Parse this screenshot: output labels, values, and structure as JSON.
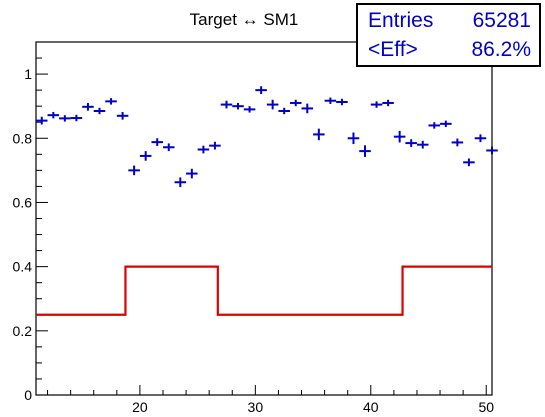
{
  "chart_data": {
    "type": "scatter",
    "title": "Target ↔ SM1",
    "xlabel": "",
    "ylabel": "",
    "xlim": [
      11,
      50.5
    ],
    "ylim": [
      0,
      1.1
    ],
    "x_ticks": [
      20,
      30,
      40,
      50
    ],
    "y_ticks": [
      0,
      0.2,
      0.4,
      0.6,
      0.8,
      1
    ],
    "grid": false,
    "series": [
      {
        "color": "#0000cc",
        "marker": "cross-with-error-bars",
        "points": [
          {
            "x": 11.5,
            "y": 0.855,
            "xerr": 0.5,
            "yerr": 0.012
          },
          {
            "x": 12.5,
            "y": 0.872,
            "xerr": 0.5,
            "yerr": 0.01
          },
          {
            "x": 13.5,
            "y": 0.862,
            "xerr": 0.5,
            "yerr": 0.01
          },
          {
            "x": 14.5,
            "y": 0.863,
            "xerr": 0.5,
            "yerr": 0.01
          },
          {
            "x": 15.5,
            "y": 0.898,
            "xerr": 0.5,
            "yerr": 0.012
          },
          {
            "x": 16.5,
            "y": 0.885,
            "xerr": 0.5,
            "yerr": 0.01
          },
          {
            "x": 17.5,
            "y": 0.915,
            "xerr": 0.5,
            "yerr": 0.01
          },
          {
            "x": 18.5,
            "y": 0.87,
            "xerr": 0.5,
            "yerr": 0.012
          },
          {
            "x": 19.5,
            "y": 0.7,
            "xerr": 0.5,
            "yerr": 0.015
          },
          {
            "x": 20.5,
            "y": 0.745,
            "xerr": 0.5,
            "yerr": 0.015
          },
          {
            "x": 21.5,
            "y": 0.788,
            "xerr": 0.5,
            "yerr": 0.012
          },
          {
            "x": 22.5,
            "y": 0.772,
            "xerr": 0.5,
            "yerr": 0.012
          },
          {
            "x": 23.5,
            "y": 0.663,
            "xerr": 0.5,
            "yerr": 0.015
          },
          {
            "x": 24.5,
            "y": 0.69,
            "xerr": 0.5,
            "yerr": 0.015
          },
          {
            "x": 25.5,
            "y": 0.765,
            "xerr": 0.5,
            "yerr": 0.012
          },
          {
            "x": 26.5,
            "y": 0.777,
            "xerr": 0.5,
            "yerr": 0.012
          },
          {
            "x": 27.5,
            "y": 0.905,
            "xerr": 0.5,
            "yerr": 0.012
          },
          {
            "x": 28.5,
            "y": 0.9,
            "xerr": 0.5,
            "yerr": 0.01
          },
          {
            "x": 29.5,
            "y": 0.89,
            "xerr": 0.5,
            "yerr": 0.01
          },
          {
            "x": 30.5,
            "y": 0.95,
            "xerr": 0.5,
            "yerr": 0.012
          },
          {
            "x": 31.5,
            "y": 0.905,
            "xerr": 0.5,
            "yerr": 0.015
          },
          {
            "x": 32.5,
            "y": 0.885,
            "xerr": 0.5,
            "yerr": 0.01
          },
          {
            "x": 33.5,
            "y": 0.91,
            "xerr": 0.5,
            "yerr": 0.01
          },
          {
            "x": 34.5,
            "y": 0.893,
            "xerr": 0.5,
            "yerr": 0.015
          },
          {
            "x": 35.5,
            "y": 0.812,
            "xerr": 0.5,
            "yerr": 0.018
          },
          {
            "x": 36.5,
            "y": 0.917,
            "xerr": 0.5,
            "yerr": 0.01
          },
          {
            "x": 37.5,
            "y": 0.913,
            "xerr": 0.5,
            "yerr": 0.01
          },
          {
            "x": 38.5,
            "y": 0.8,
            "xerr": 0.5,
            "yerr": 0.018
          },
          {
            "x": 39.5,
            "y": 0.76,
            "xerr": 0.5,
            "yerr": 0.018
          },
          {
            "x": 40.5,
            "y": 0.905,
            "xerr": 0.5,
            "yerr": 0.01
          },
          {
            "x": 41.5,
            "y": 0.91,
            "xerr": 0.5,
            "yerr": 0.01
          },
          {
            "x": 42.5,
            "y": 0.805,
            "xerr": 0.5,
            "yerr": 0.018
          },
          {
            "x": 43.5,
            "y": 0.785,
            "xerr": 0.5,
            "yerr": 0.012
          },
          {
            "x": 44.5,
            "y": 0.78,
            "xerr": 0.5,
            "yerr": 0.012
          },
          {
            "x": 45.5,
            "y": 0.84,
            "xerr": 0.5,
            "yerr": 0.01
          },
          {
            "x": 46.5,
            "y": 0.845,
            "xerr": 0.5,
            "yerr": 0.01
          },
          {
            "x": 47.5,
            "y": 0.787,
            "xerr": 0.5,
            "yerr": 0.012
          },
          {
            "x": 48.5,
            "y": 0.725,
            "xerr": 0.5,
            "yerr": 0.012
          },
          {
            "x": 49.5,
            "y": 0.8,
            "xerr": 0.5,
            "yerr": 0.012
          },
          {
            "x": 50.5,
            "y": 0.762,
            "xerr": 0.5,
            "yerr": 0.012
          }
        ]
      },
      {
        "color": "#dd0000",
        "type": "step",
        "segments": [
          {
            "x0": 11,
            "x1": 18.75,
            "y": 0.25
          },
          {
            "x0": 18.75,
            "x1": 26.75,
            "y": 0.4
          },
          {
            "x0": 26.75,
            "x1": 42.75,
            "y": 0.25
          },
          {
            "x0": 42.75,
            "x1": 50.5,
            "y": 0.4
          }
        ]
      }
    ],
    "stats": {
      "entries_label": "Entries",
      "entries_value": "65281",
      "eff_label": "<Eff>",
      "eff_value": "86.2%"
    }
  }
}
